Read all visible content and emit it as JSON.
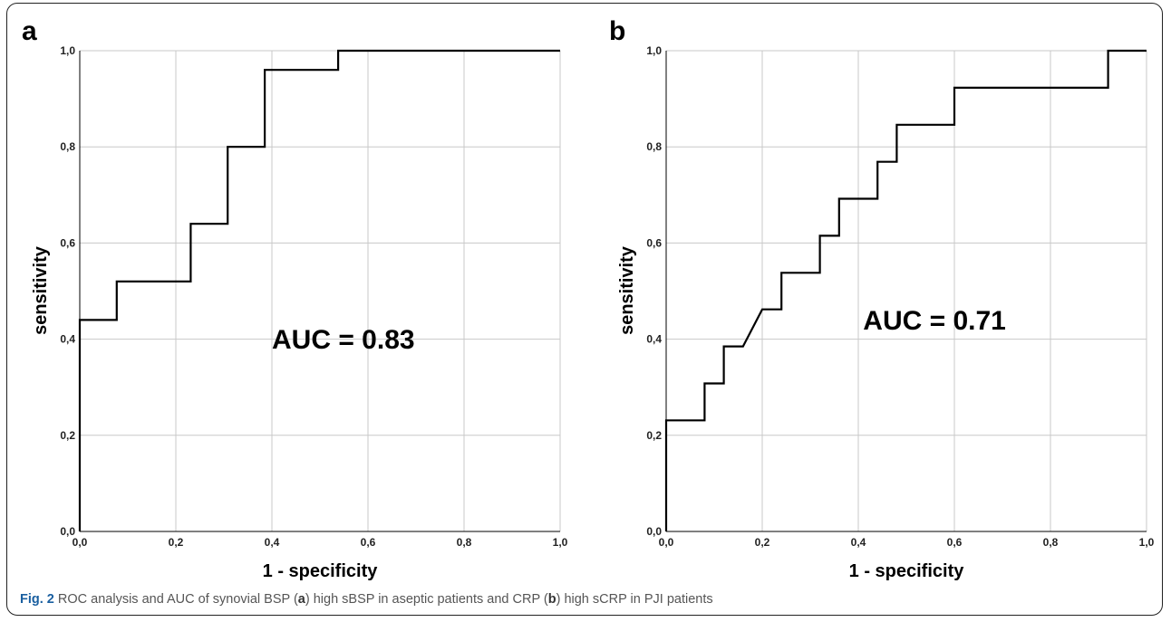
{
  "caption": {
    "fig_label": "Fig. 2",
    "part1": "ROC analysis and AUC of synovial BSP (",
    "letter_a": "a",
    "part2": ") high sBSP in aseptic patients and CRP (",
    "letter_b": "b",
    "part3": ") high sCRP in PJI patients"
  },
  "chart_data": [
    {
      "type": "line",
      "panel_label": "a",
      "xlabel": "1 - specificity",
      "ylabel": "sensitivity",
      "xlim": [
        0,
        1
      ],
      "ylim": [
        0,
        1
      ],
      "xticks": [
        "0,0",
        "0,2",
        "0,4",
        "0,6",
        "0,8",
        "1,0"
      ],
      "yticks": [
        "0,0",
        "0,2",
        "0,4",
        "0,6",
        "0,8",
        "1,0"
      ],
      "grid": true,
      "annotation": "AUC = 0.83",
      "series": [
        {
          "x": [
            0,
            0,
            0.077,
            0.077,
            0.231,
            0.231,
            0.308,
            0.308,
            0.385,
            0.385,
            0.538,
            0.538,
            1.0
          ],
          "y": [
            0,
            0.44,
            0.44,
            0.52,
            0.52,
            0.64,
            0.64,
            0.8,
            0.8,
            0.96,
            0.96,
            1.0,
            1.0
          ]
        }
      ]
    },
    {
      "type": "line",
      "panel_label": "b",
      "xlabel": "1 - specificity",
      "ylabel": "sensitivity",
      "xlim": [
        0,
        1
      ],
      "ylim": [
        0,
        1
      ],
      "xticks": [
        "0,0",
        "0,2",
        "0,4",
        "0,6",
        "0,8",
        "1,0"
      ],
      "yticks": [
        "0,0",
        "0,2",
        "0,4",
        "0,6",
        "0,8",
        "1,0"
      ],
      "grid": true,
      "annotation": "AUC = 0.71",
      "series": [
        {
          "x": [
            0,
            0,
            0.08,
            0.08,
            0.12,
            0.12,
            0.16,
            0.2,
            0.24,
            0.24,
            0.32,
            0.32,
            0.36,
            0.36,
            0.44,
            0.44,
            0.48,
            0.48,
            0.6,
            0.6,
            0.92,
            0.92,
            1.0
          ],
          "y": [
            0,
            0.231,
            0.231,
            0.308,
            0.308,
            0.385,
            0.385,
            0.462,
            0.462,
            0.538,
            0.538,
            0.615,
            0.615,
            0.692,
            0.692,
            0.769,
            0.769,
            0.846,
            0.846,
            0.923,
            0.923,
            1.0,
            1.0
          ]
        }
      ]
    }
  ]
}
